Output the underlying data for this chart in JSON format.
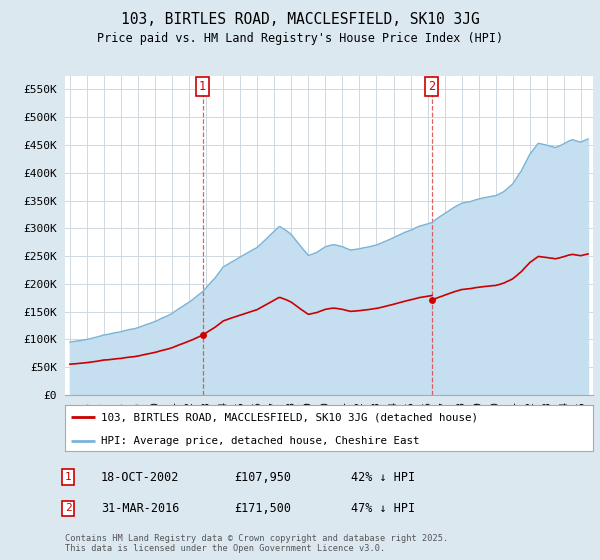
{
  "title": "103, BIRTLES ROAD, MACCLESFIELD, SK10 3JG",
  "subtitle": "Price paid vs. HM Land Registry's House Price Index (HPI)",
  "legend_line1": "103, BIRTLES ROAD, MACCLESFIELD, SK10 3JG (detached house)",
  "legend_line2": "HPI: Average price, detached house, Cheshire East",
  "annotation1_date": "18-OCT-2002",
  "annotation1_price": "£107,950",
  "annotation1_hpi": "42% ↓ HPI",
  "annotation2_date": "31-MAR-2016",
  "annotation2_price": "£171,500",
  "annotation2_hpi": "47% ↓ HPI",
  "footer": "Contains HM Land Registry data © Crown copyright and database right 2025.\nThis data is licensed under the Open Government Licence v3.0.",
  "hpi_color": "#7ab4d8",
  "hpi_fill_color": "#c5dff0",
  "price_color": "#cc0000",
  "vline_color": "#dd4444",
  "background_color": "#dce8f0",
  "plot_bg_color": "#ffffff",
  "ylim": [
    0,
    575000
  ],
  "yticks": [
    0,
    50000,
    100000,
    150000,
    200000,
    250000,
    300000,
    350000,
    400000,
    450000,
    500000,
    550000
  ],
  "ytick_labels": [
    "£0",
    "£50K",
    "£100K",
    "£150K",
    "£200K",
    "£250K",
    "£300K",
    "£350K",
    "£400K",
    "£450K",
    "£500K",
    "£550K"
  ],
  "xlim_start": 1994.7,
  "xlim_end": 2025.7,
  "purchase1_year": 2002.79,
  "purchase1_price": 107950,
  "purchase2_year": 2016.25,
  "purchase2_price": 171500
}
